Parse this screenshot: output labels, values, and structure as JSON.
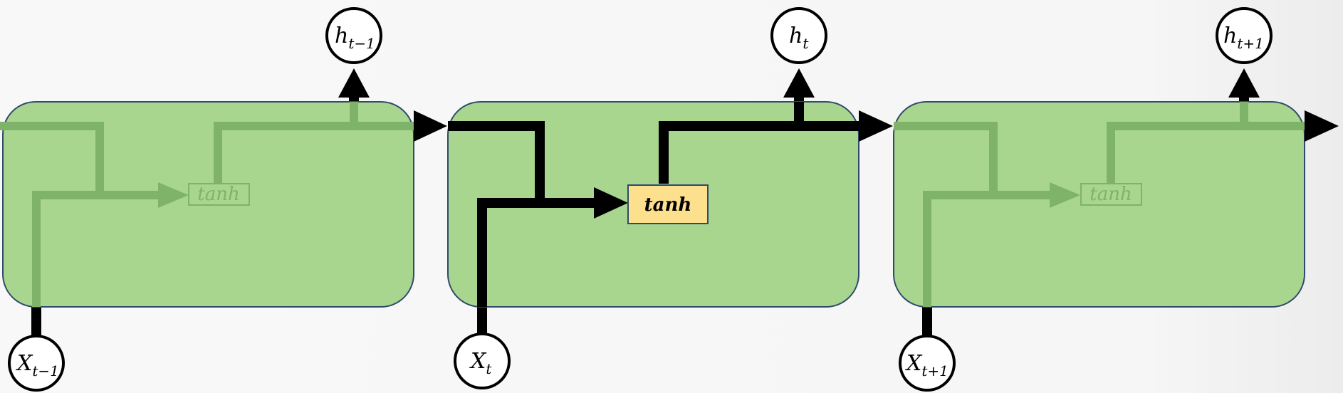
{
  "cells": [
    {
      "id": "prev",
      "faded": true,
      "activation": "tanh",
      "input": {
        "main": "X",
        "sub": "t−1"
      },
      "output": {
        "main": "h",
        "sub": "t−1"
      }
    },
    {
      "id": "current",
      "faded": false,
      "activation": "tanh",
      "input": {
        "main": "X",
        "sub": "t"
      },
      "output": {
        "main": "h",
        "sub": "t"
      }
    },
    {
      "id": "next",
      "faded": true,
      "activation": "tanh",
      "input": {
        "main": "X",
        "sub": "t+1"
      },
      "output": {
        "main": "h",
        "sub": "t+1"
      }
    }
  ],
  "colors": {
    "cell_fill": "#a8d68f",
    "cell_stroke": "#2f4a6b",
    "line": "#000000",
    "faded_line": "#7fb36a",
    "tanh_fill": "#fde08e",
    "tanh_faded_fill": "#a8d68f",
    "tanh_faded_text": "#7fb36a",
    "node_fill": "#ffffff"
  }
}
